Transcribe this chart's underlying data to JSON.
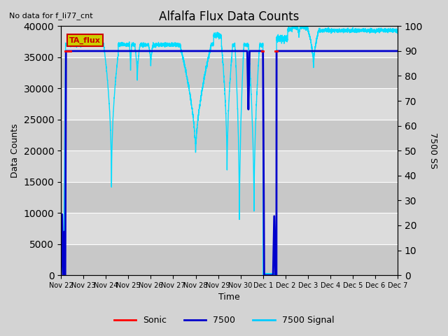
{
  "title": "Alfalfa Flux Data Counts",
  "no_data_label": "No data for f_li77_cnt",
  "xlabel": "Time",
  "ylabel_left": "Data Counts",
  "ylabel_right": "7500 SS",
  "ylim_left": [
    0,
    40000
  ],
  "ylim_right": [
    0,
    100
  ],
  "yticks_left": [
    0,
    5000,
    10000,
    15000,
    20000,
    25000,
    30000,
    35000,
    40000
  ],
  "yticks_right": [
    0,
    10,
    20,
    30,
    40,
    50,
    60,
    70,
    80,
    90,
    100
  ],
  "background_color": "#d3d3d3",
  "plot_bg_color": "#dcdcdc",
  "ta_flux_box_facecolor": "#cccc00",
  "ta_flux_box_edgecolor": "#cc0000",
  "ta_flux_text": "TA_flux",
  "legend_entries": [
    "Sonic",
    "7500",
    "7500 Signal"
  ],
  "legend_colors": [
    "#ff0000",
    "#0000cc",
    "#00ccff"
  ],
  "sonic_color": "#ff0000",
  "b7500_color": "#0000cc",
  "signal_color": "#00ddff",
  "signal_lw": 1.0,
  "sonic_lw": 2.0,
  "b7500_lw": 2.0,
  "grid_color": "#ffffff",
  "alt_band_color": "#c8c8c8",
  "figsize": [
    6.4,
    4.8
  ],
  "dpi": 100
}
